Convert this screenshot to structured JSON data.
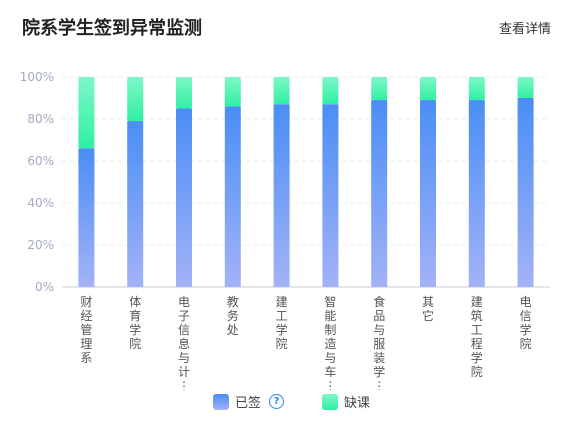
{
  "header": {
    "title": "院系学生签到异常监测",
    "detail_link": "查看详情"
  },
  "legend": {
    "signed_label": "已签",
    "absent_label": "缺课",
    "help_icon": "question-circle-icon"
  },
  "colors": {
    "signed_top": "#4a8ef5",
    "signed_bottom": "#a3b2f7",
    "absent_top": "#7ef7c8",
    "absent_bottom": "#2ff0a2",
    "axis_text": "#a5a9c4",
    "label_text": "#555555"
  },
  "chart_data": {
    "type": "bar",
    "stacked": true,
    "categories": [
      "财经管理系",
      "体育学院",
      "电子信息与计…",
      "教务处",
      "建工学院",
      "智能制造与车…",
      "食品与服装学…",
      "其它",
      "建筑工程学院",
      "电信学院"
    ],
    "series": [
      {
        "name": "已签",
        "values": [
          66,
          79,
          85,
          86,
          87,
          87,
          89,
          89,
          89,
          90
        ]
      },
      {
        "name": "缺课",
        "values": [
          34,
          21,
          15,
          14,
          13,
          13,
          11,
          11,
          11,
          10
        ]
      }
    ],
    "yticks": [
      "0%",
      "20%",
      "40%",
      "60%",
      "80%",
      "100%"
    ],
    "ylim": [
      0,
      100
    ],
    "grid": true,
    "legend_position": "bottom"
  }
}
